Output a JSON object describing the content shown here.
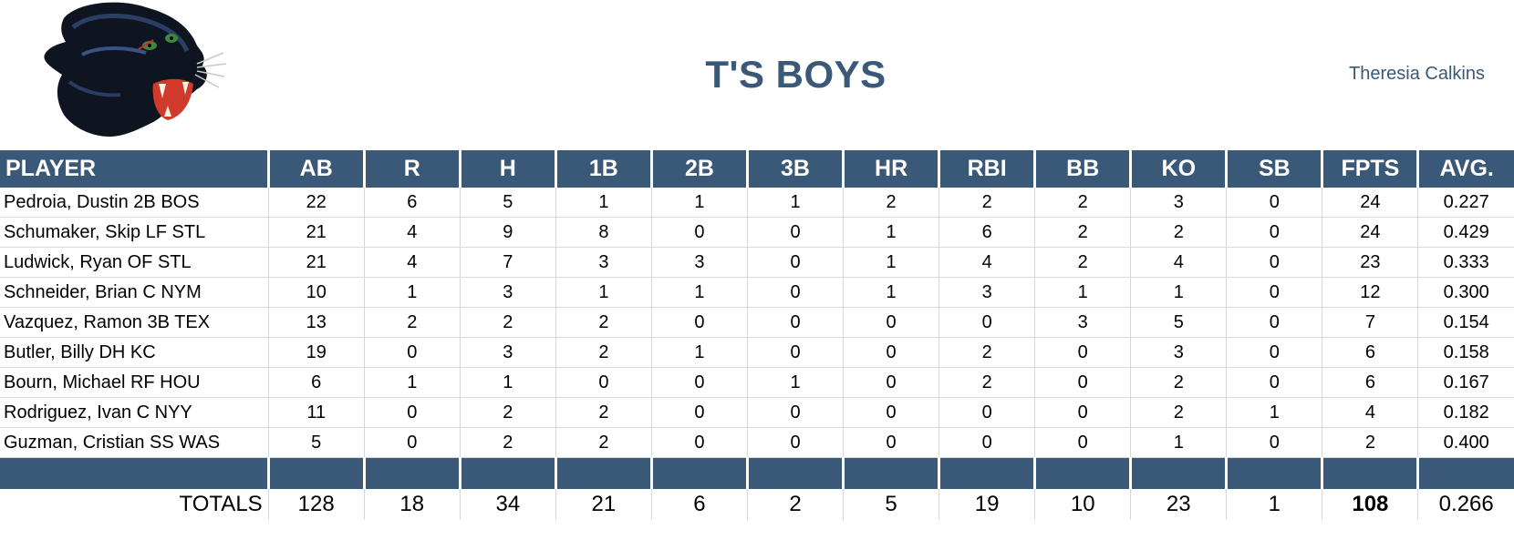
{
  "team": {
    "name": "T'S BOYS",
    "owner": "Theresia Calkins"
  },
  "columns": [
    "PLAYER",
    "AB",
    "R",
    "H",
    "1B",
    "2B",
    "3B",
    "HR",
    "RBI",
    "BB",
    "KO",
    "SB",
    "FPTS",
    "AVG."
  ],
  "players": [
    {
      "player": "Pedroia, Dustin 2B BOS",
      "ab": "22",
      "r": "6",
      "h": "5",
      "b1": "1",
      "b2": "1",
      "b3": "1",
      "hr": "2",
      "rbi": "2",
      "bb": "2",
      "ko": "3",
      "sb": "0",
      "fpts": "24",
      "avg": "0.227"
    },
    {
      "player": "Schumaker, Skip LF STL",
      "ab": "21",
      "r": "4",
      "h": "9",
      "b1": "8",
      "b2": "0",
      "b3": "0",
      "hr": "1",
      "rbi": "6",
      "bb": "2",
      "ko": "2",
      "sb": "0",
      "fpts": "24",
      "avg": "0.429"
    },
    {
      "player": "Ludwick, Ryan OF STL",
      "ab": "21",
      "r": "4",
      "h": "7",
      "b1": "3",
      "b2": "3",
      "b3": "0",
      "hr": "1",
      "rbi": "4",
      "bb": "2",
      "ko": "4",
      "sb": "0",
      "fpts": "23",
      "avg": "0.333"
    },
    {
      "player": "Schneider, Brian C NYM",
      "ab": "10",
      "r": "1",
      "h": "3",
      "b1": "1",
      "b2": "1",
      "b3": "0",
      "hr": "1",
      "rbi": "3",
      "bb": "1",
      "ko": "1",
      "sb": "0",
      "fpts": "12",
      "avg": "0.300"
    },
    {
      "player": "Vazquez, Ramon 3B TEX",
      "ab": "13",
      "r": "2",
      "h": "2",
      "b1": "2",
      "b2": "0",
      "b3": "0",
      "hr": "0",
      "rbi": "0",
      "bb": "3",
      "ko": "5",
      "sb": "0",
      "fpts": "7",
      "avg": "0.154"
    },
    {
      "player": "Butler, Billy DH KC",
      "ab": "19",
      "r": "0",
      "h": "3",
      "b1": "2",
      "b2": "1",
      "b3": "0",
      "hr": "0",
      "rbi": "2",
      "bb": "0",
      "ko": "3",
      "sb": "0",
      "fpts": "6",
      "avg": "0.158"
    },
    {
      "player": "Bourn, Michael RF HOU",
      "ab": "6",
      "r": "1",
      "h": "1",
      "b1": "0",
      "b2": "0",
      "b3": "1",
      "hr": "0",
      "rbi": "2",
      "bb": "0",
      "ko": "2",
      "sb": "0",
      "fpts": "6",
      "avg": "0.167"
    },
    {
      "player": "Rodriguez, Ivan C NYY",
      "ab": "11",
      "r": "0",
      "h": "2",
      "b1": "2",
      "b2": "0",
      "b3": "0",
      "hr": "0",
      "rbi": "0",
      "bb": "0",
      "ko": "2",
      "sb": "1",
      "fpts": "4",
      "avg": "0.182"
    },
    {
      "player": "Guzman, Cristian SS WAS",
      "ab": "5",
      "r": "0",
      "h": "2",
      "b1": "2",
      "b2": "0",
      "b3": "0",
      "hr": "0",
      "rbi": "0",
      "bb": "0",
      "ko": "1",
      "sb": "0",
      "fpts": "2",
      "avg": "0.400"
    }
  ],
  "totals": {
    "label": "TOTALS",
    "ab": "128",
    "r": "18",
    "h": "34",
    "b1": "21",
    "b2": "6",
    "b3": "2",
    "hr": "5",
    "rbi": "19",
    "bb": "10",
    "ko": "23",
    "sb": "1",
    "fpts": "108",
    "avg": "0.266"
  },
  "logo": {
    "icon": "panther-head-icon"
  },
  "colors": {
    "header_bg": "#3a5878",
    "title": "#3a5878",
    "grid": "#d9d9d9"
  }
}
